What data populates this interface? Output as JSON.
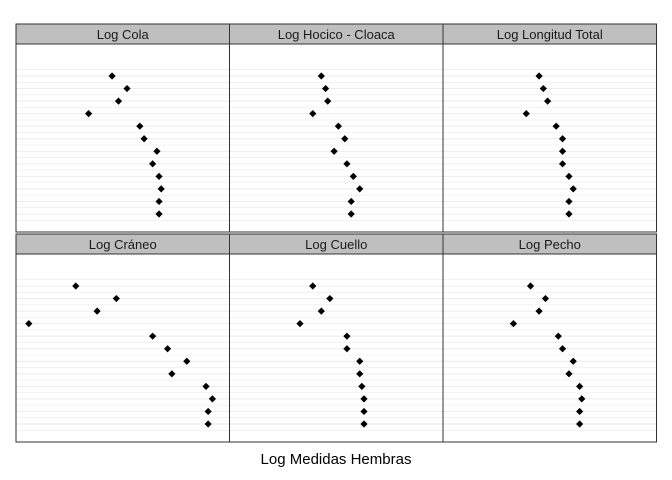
{
  "chart_data": {
    "type": "scatter",
    "xlabel": "Log Medidas Hembras",
    "ylabel": "",
    "grid": true,
    "n_rows": 12,
    "colors": {
      "point": "#000000",
      "strip_fill": "#bfbfbf",
      "panel_border": "#333333",
      "grid": "#ebebeb"
    },
    "panels": [
      {
        "title": "Log Cola",
        "xlim": [
          0,
          1
        ],
        "values": [
          0.45,
          0.52,
          0.48,
          0.34,
          0.58,
          0.6,
          0.66,
          0.64,
          0.67,
          0.68,
          0.67,
          0.67
        ]
      },
      {
        "title": "Log Hocico - Cloaca",
        "xlim": [
          0,
          1
        ],
        "values": [
          0.43,
          0.45,
          0.46,
          0.39,
          0.51,
          0.54,
          0.49,
          0.55,
          0.58,
          0.61,
          0.57,
          0.57
        ]
      },
      {
        "title": "Log Longitud Total",
        "xlim": [
          0,
          1
        ],
        "values": [
          0.45,
          0.47,
          0.49,
          0.39,
          0.53,
          0.56,
          0.56,
          0.56,
          0.59,
          0.61,
          0.59,
          0.59
        ]
      },
      {
        "title": "Log Cráneo",
        "xlim": [
          0,
          1
        ],
        "values": [
          0.28,
          0.47,
          0.38,
          0.06,
          0.64,
          0.71,
          0.8,
          0.73,
          0.89,
          0.92,
          0.9,
          0.9
        ]
      },
      {
        "title": "Log Cuello",
        "xlim": [
          0,
          1
        ],
        "values": [
          0.39,
          0.47,
          0.43,
          0.33,
          0.55,
          0.55,
          0.61,
          0.61,
          0.62,
          0.63,
          0.63,
          0.63
        ]
      },
      {
        "title": "Log Pecho",
        "xlim": [
          0,
          1
        ],
        "values": [
          0.41,
          0.48,
          0.45,
          0.33,
          0.54,
          0.56,
          0.61,
          0.59,
          0.64,
          0.65,
          0.64,
          0.64
        ]
      }
    ]
  }
}
